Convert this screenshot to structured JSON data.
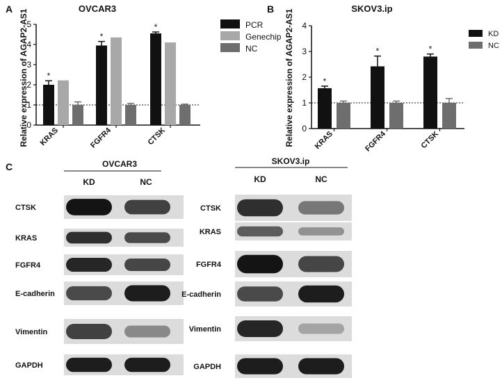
{
  "panels": {
    "a": "A",
    "b": "B",
    "c": "C"
  },
  "chart_data": [
    {
      "type": "bar",
      "title": "OVCAR3",
      "ylabel": "Relative expression of  AGAP2-AS1",
      "categories": [
        "KRAS",
        "FGFR4",
        "CTSK"
      ],
      "ylim": [
        0,
        5
      ],
      "yticks": [
        0,
        1,
        2,
        3,
        4,
        5
      ],
      "reference_line": 1,
      "legend_position": "right",
      "series": [
        {
          "name": "PCR",
          "color": "#111111",
          "values": [
            2.0,
            3.95,
            4.55
          ],
          "errors": [
            0.2,
            0.2,
            0.07
          ],
          "significant": [
            true,
            true,
            true
          ]
        },
        {
          "name": "Genechip",
          "color": "#a8a8a8",
          "values": [
            2.22,
            4.35,
            4.1
          ],
          "errors": [
            0,
            0,
            0
          ],
          "significant": [
            false,
            false,
            false
          ]
        },
        {
          "name": "NC",
          "color": "#6e6e6e",
          "values": [
            1.0,
            1.0,
            1.0
          ],
          "errors": [
            0.15,
            0.08,
            0.04
          ],
          "significant": [
            false,
            false,
            false
          ]
        }
      ]
    },
    {
      "type": "bar",
      "title": "SKOV3.ip",
      "ylabel": "Relative expression of  AGAP2-AS1",
      "categories": [
        "KRAS",
        "FGFR4",
        "CTSK"
      ],
      "ylim": [
        0,
        4
      ],
      "yticks": [
        0,
        1,
        2,
        3,
        4
      ],
      "reference_line": 1,
      "legend_position": "top-right",
      "series": [
        {
          "name": "KD",
          "color": "#111111",
          "values": [
            1.57,
            2.42,
            2.8
          ],
          "errors": [
            0.08,
            0.4,
            0.1
          ],
          "significant": [
            true,
            true,
            true
          ]
        },
        {
          "name": "NC",
          "color": "#6e6e6e",
          "values": [
            1.0,
            1.0,
            1.0
          ],
          "errors": [
            0.07,
            0.07,
            0.17
          ],
          "significant": [
            false,
            false,
            false
          ]
        }
      ]
    }
  ],
  "western_blot": {
    "left": {
      "title": "OVCAR3",
      "lanes": [
        "KD",
        "NC"
      ],
      "proteins": [
        {
          "label": "CTSK",
          "kd": 1.0,
          "nc": 0.75
        },
        {
          "label": "KRAS",
          "kd": 0.85,
          "nc": 0.7
        },
        {
          "label": "FGFR4",
          "kd": 0.9,
          "nc": 0.72
        },
        {
          "label": "E-cadherin",
          "kd": 0.7,
          "nc": 0.95
        },
        {
          "label": "Vimentin",
          "kd": 0.75,
          "nc": 0.35
        },
        {
          "label": "GAPDH",
          "kd": 0.95,
          "nc": 0.95
        }
      ]
    },
    "right": {
      "title": "SKOV3.ip",
      "lanes": [
        "KD",
        "NC"
      ],
      "proteins": [
        {
          "label": "CTSK",
          "kd": 0.85,
          "nc": 0.45
        },
        {
          "label": "KRAS",
          "kd": 0.6,
          "nc": 0.3
        },
        {
          "label": "FGFR4",
          "kd": 1.0,
          "nc": 0.72
        },
        {
          "label": "E-cadherin",
          "kd": 0.7,
          "nc": 0.95
        },
        {
          "label": "Vimentin",
          "kd": 0.9,
          "nc": 0.2
        },
        {
          "label": "GAPDH",
          "kd": 0.95,
          "nc": 0.95
        }
      ]
    }
  }
}
